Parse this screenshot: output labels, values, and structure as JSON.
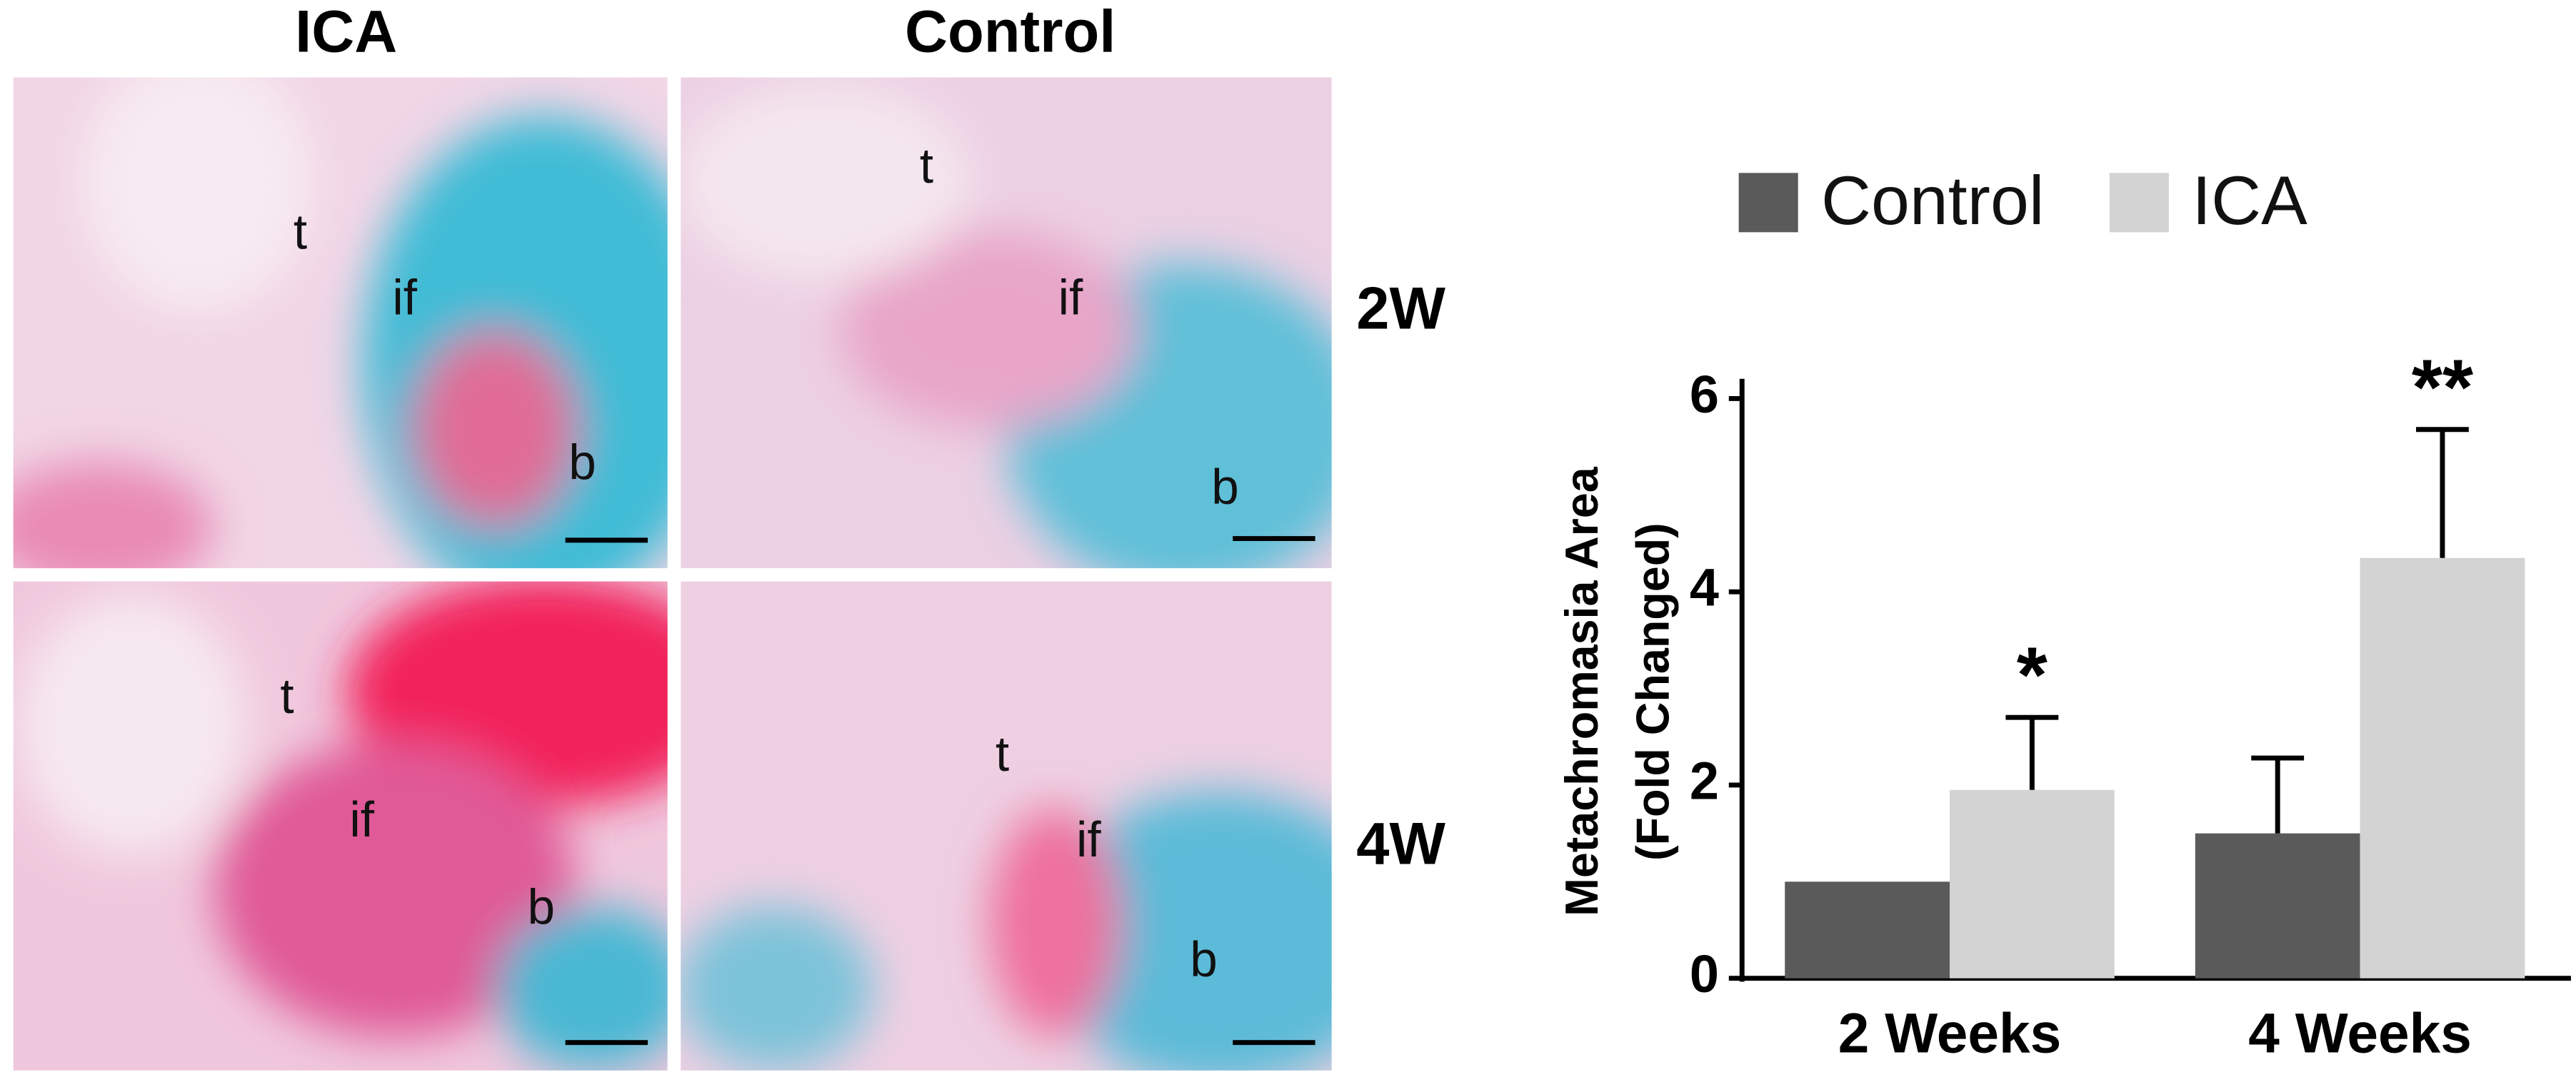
{
  "figure": {
    "columns": [
      "ICA",
      "Control"
    ],
    "rows": [
      "2W",
      "4W"
    ],
    "panels": [
      {
        "labels": [
          "t",
          "if",
          "b"
        ]
      },
      {
        "labels": [
          "t",
          "if",
          "b"
        ]
      },
      {
        "labels": [
          "t",
          "if",
          "b"
        ]
      },
      {
        "labels": [
          "t",
          "if",
          "b"
        ]
      }
    ]
  },
  "chart_data": {
    "type": "bar",
    "ylabel": [
      "Metachromasia Area",
      "(Fold Changed)"
    ],
    "categories": [
      "2 Weeks",
      "4 Weeks"
    ],
    "series": [
      {
        "name": "Control",
        "color": "#5a5a5a",
        "values": [
          1,
          1.5
        ],
        "errors": [
          null,
          0.78
        ]
      },
      {
        "name": "ICA",
        "color": "#d3d3d3",
        "values": [
          1.95,
          4.35
        ],
        "errors": [
          0.75,
          1.33
        ],
        "annotations": [
          "*",
          "**"
        ]
      }
    ],
    "ylim": [
      0,
      6
    ],
    "yticks": [
      0,
      2,
      4,
      6
    ]
  }
}
